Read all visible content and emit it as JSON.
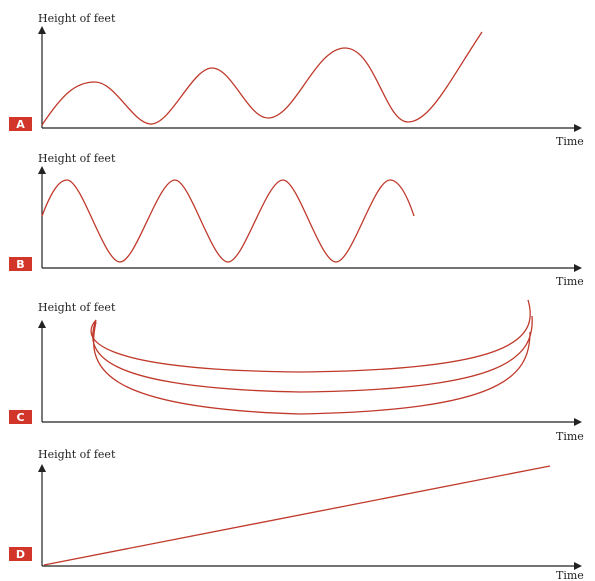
{
  "chart_data": [
    {
      "type": "line",
      "panel": "A",
      "ylabel": "Height of feet",
      "xlabel": "Time",
      "description_shape": "oscillation with increasing amplitude and rising trend"
    },
    {
      "type": "line",
      "panel": "B",
      "ylabel": "Height of feet",
      "xlabel": "Time",
      "description_shape": "regular sinusoidal oscillation, constant amplitude, 4 peaks"
    },
    {
      "type": "line",
      "panel": "C",
      "ylabel": "Height of feet",
      "xlabel": "Time",
      "description_shape": "three stacked U-shaped loops"
    },
    {
      "type": "line",
      "panel": "D",
      "ylabel": "Height of feet",
      "xlabel": "Time",
      "description_shape": "straight increasing line"
    }
  ],
  "colors": {
    "curve": "#c0392b",
    "badge": "#d2352a",
    "axis": "#222222"
  }
}
